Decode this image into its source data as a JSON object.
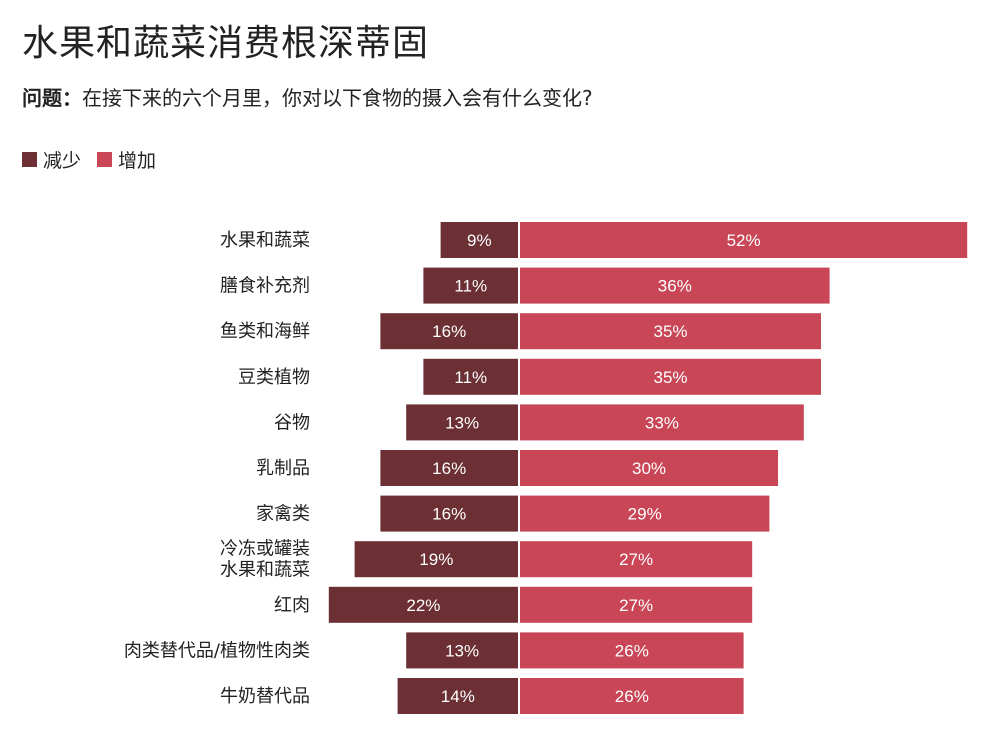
{
  "colors": {
    "decrease": "#6b2f34",
    "increase": "#c84656"
  },
  "chart_data": {
    "type": "bar",
    "orientation": "diverging-horizontal",
    "title": "水果和蔬菜消费根深蒂固",
    "question_label": "问题：",
    "question_text": "在接下来的六个月里，你对以下食物的摄入会有什么变化?",
    "legend": [
      "减少",
      "增加"
    ],
    "unit": "%",
    "categories": [
      [
        "水果和蔬菜"
      ],
      [
        "膳食补充剂"
      ],
      [
        "鱼类和海鲜"
      ],
      [
        "豆类植物"
      ],
      [
        "谷物"
      ],
      [
        "乳制品"
      ],
      [
        "家禽类"
      ],
      [
        "冷冻或罐装",
        "水果和蔬菜"
      ],
      [
        "红肉"
      ],
      [
        "肉类替代品/植物性肉类"
      ],
      [
        "牛奶替代品"
      ]
    ],
    "series": [
      {
        "name": "减少",
        "values": [
          9,
          11,
          16,
          11,
          13,
          16,
          16,
          19,
          22,
          13,
          14
        ]
      },
      {
        "name": "增加",
        "values": [
          52,
          36,
          35,
          35,
          33,
          30,
          29,
          27,
          27,
          26,
          26
        ]
      }
    ]
  }
}
